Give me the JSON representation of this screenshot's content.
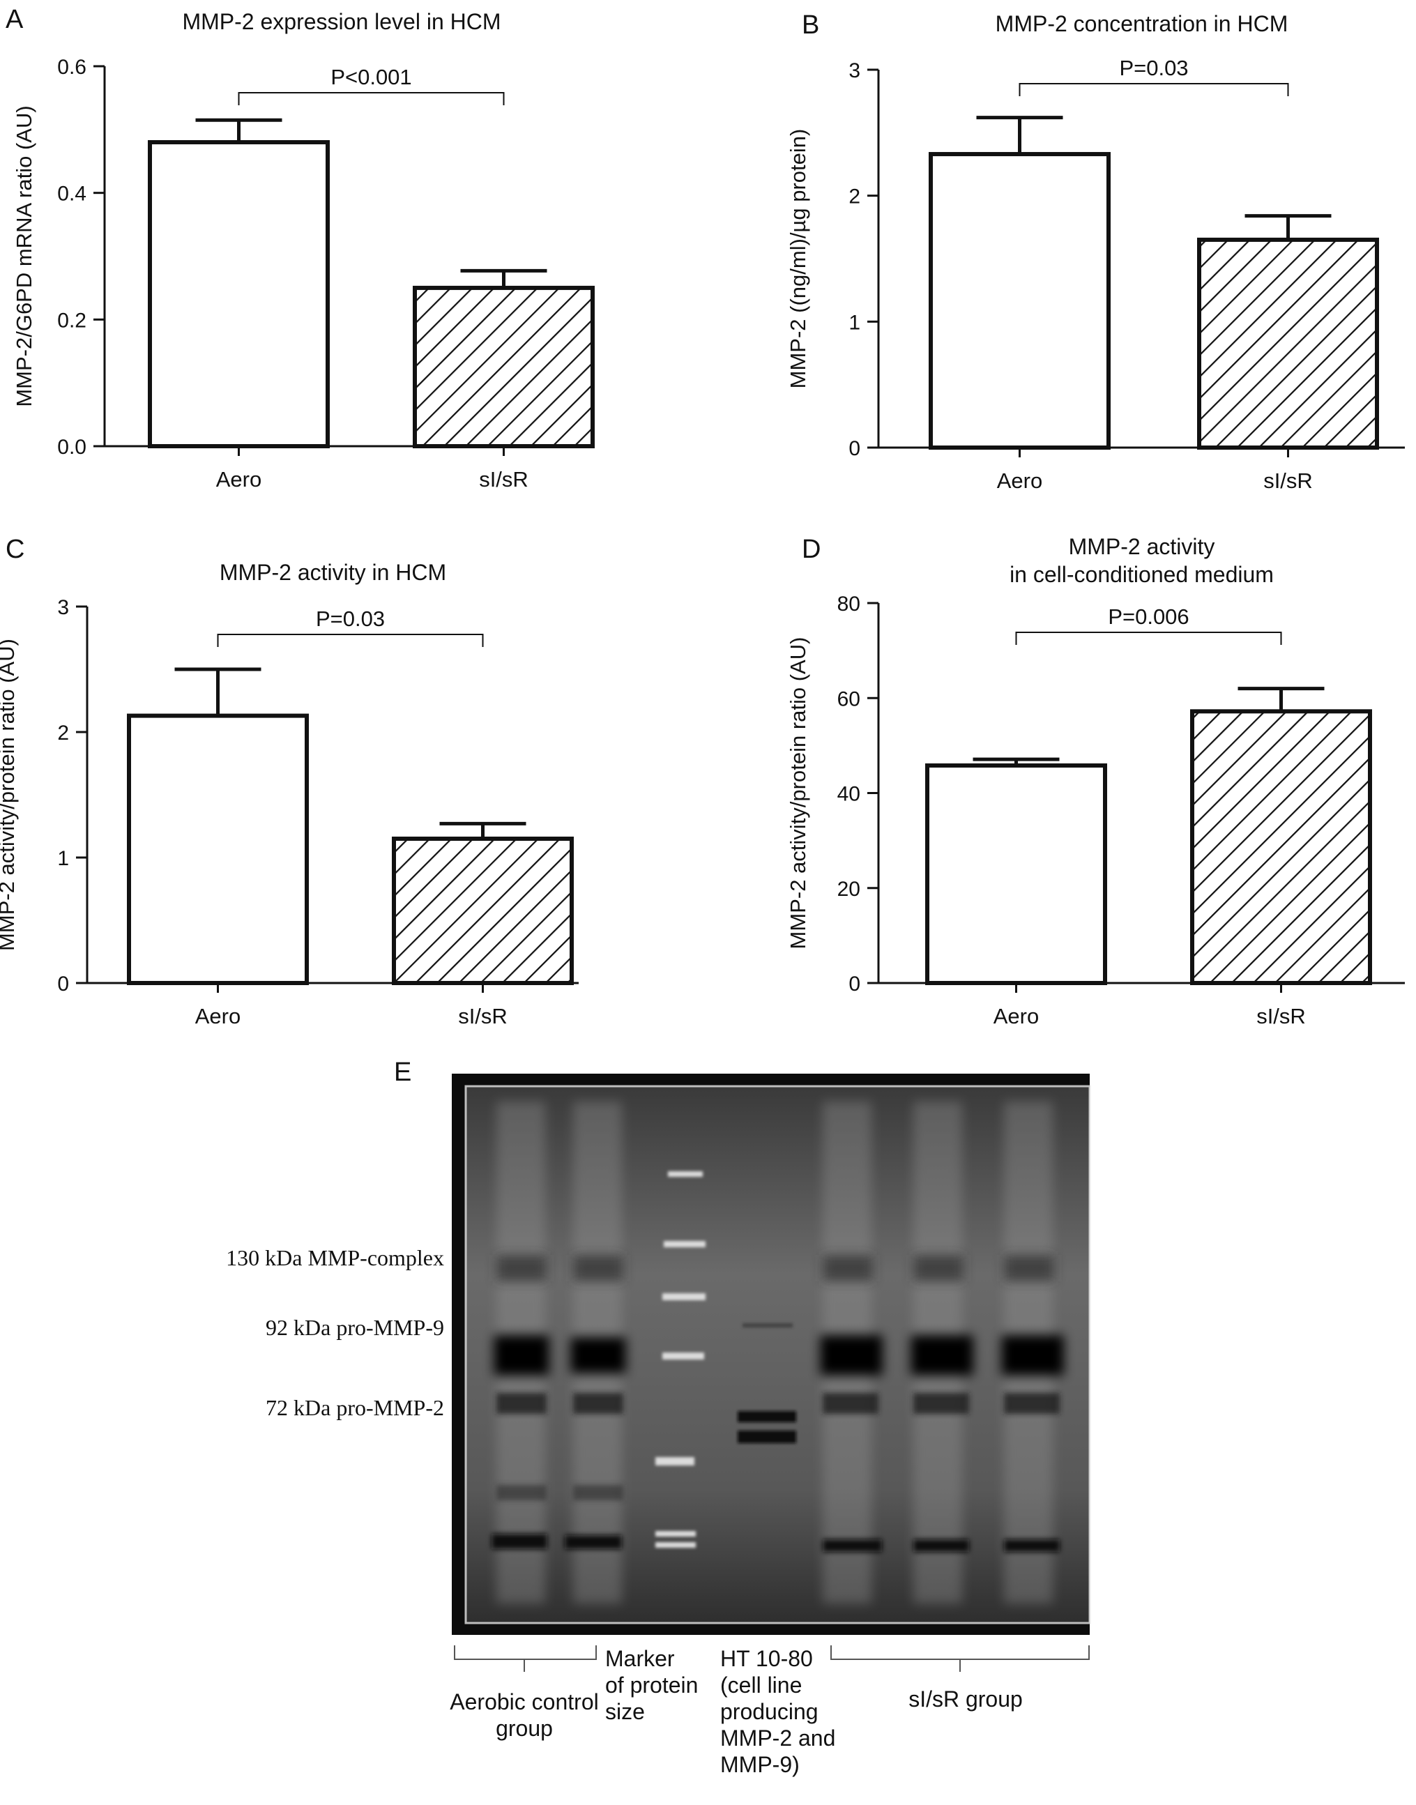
{
  "chart_data": [
    {
      "panel": "A",
      "type": "bar",
      "title": "MMP-2 expression level in HCM",
      "ylabel": "MMP-2/G6PD mRNA ratio (AU)",
      "xlabel": "",
      "categories": [
        "Aero",
        "sI/sR"
      ],
      "values": [
        0.48,
        0.25
      ],
      "errors": [
        0.035,
        0.027
      ],
      "ylim": [
        0,
        0.6
      ],
      "yticks": [
        "0.0",
        "0.2",
        "0.4",
        "0.6"
      ],
      "ytick_values": [
        0,
        0.2,
        0.4,
        0.6
      ],
      "bar_styles": [
        "open",
        "hatched"
      ],
      "significance": "P<0.001"
    },
    {
      "panel": "B",
      "type": "bar",
      "title": "MMP-2 concentration in HCM",
      "ylabel": "MMP-2 ((ng/ml)/µg protein)",
      "xlabel": "",
      "categories": [
        "Aero",
        "sI/sR"
      ],
      "values": [
        2.33,
        1.65
      ],
      "errors": [
        0.29,
        0.19
      ],
      "ylim": [
        0,
        3
      ],
      "yticks": [
        "0",
        "1",
        "2",
        "3"
      ],
      "ytick_values": [
        0,
        1,
        2,
        3
      ],
      "bar_styles": [
        "open",
        "hatched"
      ],
      "significance": "P=0.03"
    },
    {
      "panel": "C",
      "type": "bar",
      "title": "MMP-2 activity in HCM",
      "ylabel": "MMP-2 activity/protein ratio (AU)",
      "xlabel": "",
      "categories": [
        "Aero",
        "sI/sR"
      ],
      "values": [
        2.13,
        1.15
      ],
      "errors": [
        0.37,
        0.12
      ],
      "ylim": [
        0,
        3
      ],
      "yticks": [
        "0",
        "1",
        "2",
        "3"
      ],
      "ytick_values": [
        0,
        1,
        2,
        3
      ],
      "bar_styles": [
        "open",
        "hatched"
      ],
      "significance": "P=0.03"
    },
    {
      "panel": "D",
      "type": "bar",
      "title": "MMP-2 activity\nin cell-conditioned medium",
      "ylabel": "MMP-2 activity/protein ratio (AU)",
      "xlabel": "",
      "categories": [
        "Aero",
        "sI/sR"
      ],
      "values": [
        45.8,
        57.2
      ],
      "errors": [
        1.3,
        4.8
      ],
      "ylim": [
        0,
        80
      ],
      "yticks": [
        "0",
        "20",
        "40",
        "60",
        "80"
      ],
      "ytick_values": [
        0,
        20,
        40,
        60,
        80
      ],
      "bar_styles": [
        "open",
        "hatched"
      ],
      "significance": "P=0.006"
    }
  ],
  "gel": {
    "panel": "E",
    "band_labels": [
      "130 kDa MMP-complex",
      "92 kDa pro-MMP-9",
      "72 kDa pro-MMP-2"
    ],
    "lane_groups": [
      {
        "label": "Aerobic control\ngroup"
      },
      {
        "label": "Marker\nof protein\nsize"
      },
      {
        "label": "HT 10-80\n(cell line\nproducing\nMMP-2 and\nMMP-9)"
      },
      {
        "label": "sI/sR group"
      }
    ]
  }
}
